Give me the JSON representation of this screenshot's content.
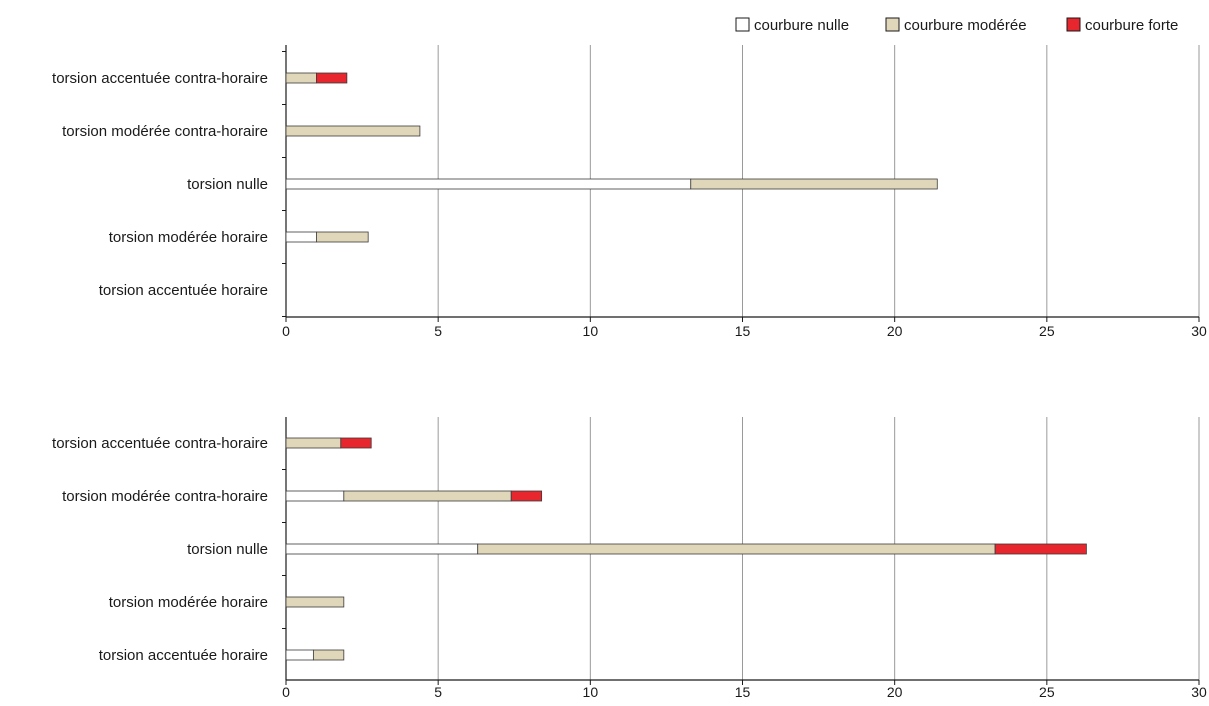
{
  "legend": {
    "placement": "top-right",
    "items": [
      {
        "label": "courbure nulle",
        "color": "#ffffff"
      },
      {
        "label": "courbure modérée",
        "color": "#e0d6b9"
      },
      {
        "label": "courbure forte",
        "color": "#e8262d"
      }
    ]
  },
  "chart_data": [
    {
      "type": "bar",
      "orientation": "horizontal",
      "stacked": true,
      "categories": [
        "torsion accentuée contra-horaire",
        "torsion modérée contra-horaire",
        "torsion nulle",
        "torsion modérée horaire",
        "torsion accentuée horaire"
      ],
      "series": [
        {
          "name": "courbure nulle",
          "values": [
            0,
            0,
            13.3,
            1.0,
            0
          ]
        },
        {
          "name": "courbure modérée",
          "values": [
            1.0,
            4.4,
            8.1,
            1.7,
            0
          ]
        },
        {
          "name": "courbure forte",
          "values": [
            1.0,
            0,
            0,
            0,
            0
          ]
        }
      ],
      "xlim": [
        0,
        30
      ],
      "xticks": [
        "0",
        "5",
        "10",
        "15",
        "20",
        "25",
        "30"
      ],
      "grid": "vertical"
    },
    {
      "type": "bar",
      "orientation": "horizontal",
      "stacked": true,
      "categories": [
        "torsion accentuée contra-horaire",
        "torsion modérée contra-horaire",
        "torsion nulle",
        "torsion modérée horaire",
        "torsion accentuée horaire"
      ],
      "series": [
        {
          "name": "courbure nulle",
          "values": [
            0,
            1.9,
            6.3,
            0,
            0.9
          ]
        },
        {
          "name": "courbure modérée",
          "values": [
            1.8,
            5.5,
            17.0,
            1.9,
            1.0
          ]
        },
        {
          "name": "courbure forte",
          "values": [
            1.0,
            1.0,
            3.0,
            0,
            0
          ]
        }
      ],
      "xlim": [
        0,
        30
      ],
      "xticks": [
        "0",
        "5",
        "10",
        "15",
        "20",
        "25",
        "30"
      ],
      "grid": "vertical"
    }
  ]
}
